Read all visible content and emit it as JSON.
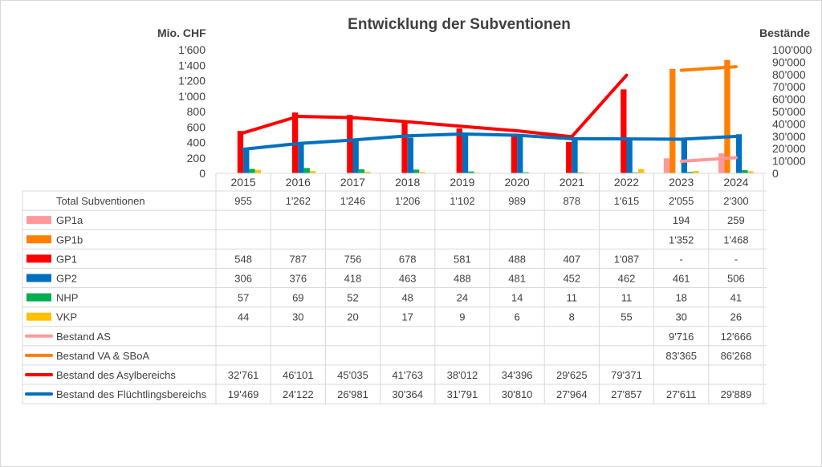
{
  "chart_data": {
    "type": "bar",
    "title": "Entwicklung der Subventionen",
    "ylabel": "Mio. CHF",
    "y2label": "Bestände",
    "ylim": [
      0,
      1600
    ],
    "y2lim": [
      0,
      100000
    ],
    "yticks": [
      "0",
      "200",
      "400",
      "600",
      "800",
      "1'000",
      "1'200",
      "1'400",
      "1'600"
    ],
    "y2ticks": [
      "0",
      "10'000",
      "20'000",
      "30'000",
      "40'000",
      "50'000",
      "60'000",
      "70'000",
      "80'000",
      "90'000",
      "100'000"
    ],
    "categories": [
      "2015",
      "2016",
      "2017",
      "2018",
      "2019",
      "2020",
      "2021",
      "2022",
      "2023",
      "2024"
    ],
    "grid": false,
    "total": {
      "name": "Total Subventionen",
      "labels": [
        "955",
        "1'262",
        "1'246",
        "1'206",
        "1'102",
        "989",
        "878",
        "1'615",
        "2'055",
        "2'300"
      ]
    },
    "bar_series": [
      {
        "name": "GP1a",
        "color": "#ff9999",
        "values": [
          null,
          null,
          null,
          null,
          null,
          null,
          null,
          null,
          194,
          259
        ],
        "labels": [
          "",
          "",
          "",
          "",
          "",
          "",
          "",
          "",
          "194",
          "259"
        ]
      },
      {
        "name": "GP1b",
        "color": "#ff7f00",
        "values": [
          null,
          null,
          null,
          null,
          null,
          null,
          null,
          null,
          1352,
          1468
        ],
        "labels": [
          "",
          "",
          "",
          "",
          "",
          "",
          "",
          "",
          "1'352",
          "1'468"
        ]
      },
      {
        "name": "GP1",
        "color": "#ff0000",
        "values": [
          548,
          787,
          756,
          678,
          581,
          488,
          407,
          1087,
          null,
          null
        ],
        "labels": [
          "548",
          "787",
          "756",
          "678",
          "581",
          "488",
          "407",
          "1'087",
          "-",
          "-"
        ]
      },
      {
        "name": "GP2",
        "color": "#0070c0",
        "values": [
          306,
          376,
          418,
          463,
          488,
          481,
          452,
          462,
          461,
          506
        ],
        "labels": [
          "306",
          "376",
          "418",
          "463",
          "488",
          "481",
          "452",
          "462",
          "461",
          "506"
        ]
      },
      {
        "name": "NHP",
        "color": "#00b050",
        "values": [
          57,
          69,
          52,
          48,
          24,
          14,
          11,
          11,
          18,
          41
        ],
        "labels": [
          "57",
          "69",
          "52",
          "48",
          "24",
          "14",
          "11",
          "11",
          "18",
          "41"
        ]
      },
      {
        "name": "VKP",
        "color": "#ffc000",
        "values": [
          44,
          30,
          20,
          17,
          9,
          6,
          8,
          55,
          30,
          26
        ],
        "labels": [
          "44",
          "30",
          "20",
          "17",
          "9",
          "6",
          "8",
          "55",
          "30",
          "26"
        ]
      }
    ],
    "line_series": [
      {
        "name": "Bestand AS",
        "color": "#ff9999",
        "values": [
          null,
          null,
          null,
          null,
          null,
          null,
          null,
          null,
          9716,
          12666
        ],
        "labels": [
          "",
          "",
          "",
          "",
          "",
          "",
          "",
          "",
          "9'716",
          "12'666"
        ]
      },
      {
        "name": "Bestand VA & SBoA",
        "color": "#ff7f00",
        "values": [
          null,
          null,
          null,
          null,
          null,
          null,
          null,
          null,
          83365,
          86268
        ],
        "labels": [
          "",
          "",
          "",
          "",
          "",
          "",
          "",
          "",
          "83'365",
          "86'268"
        ]
      },
      {
        "name": "Bestand des Asylbereichs",
        "color": "#ff0000",
        "values": [
          32761,
          46101,
          45035,
          41763,
          38012,
          34396,
          29625,
          79371,
          null,
          null
        ],
        "labels": [
          "32'761",
          "46'101",
          "45'035",
          "41'763",
          "38'012",
          "34'396",
          "29'625",
          "79'371",
          "",
          ""
        ]
      },
      {
        "name": "Bestand des Flüchtlingsbereichs",
        "color": "#0070c0",
        "values": [
          19469,
          24122,
          26981,
          30364,
          31791,
          30810,
          27964,
          27857,
          27611,
          29889
        ],
        "labels": [
          "19'469",
          "24'122",
          "26'981",
          "30'364",
          "31'791",
          "30'810",
          "27'964",
          "27'857",
          "27'611",
          "29'889"
        ]
      }
    ]
  }
}
